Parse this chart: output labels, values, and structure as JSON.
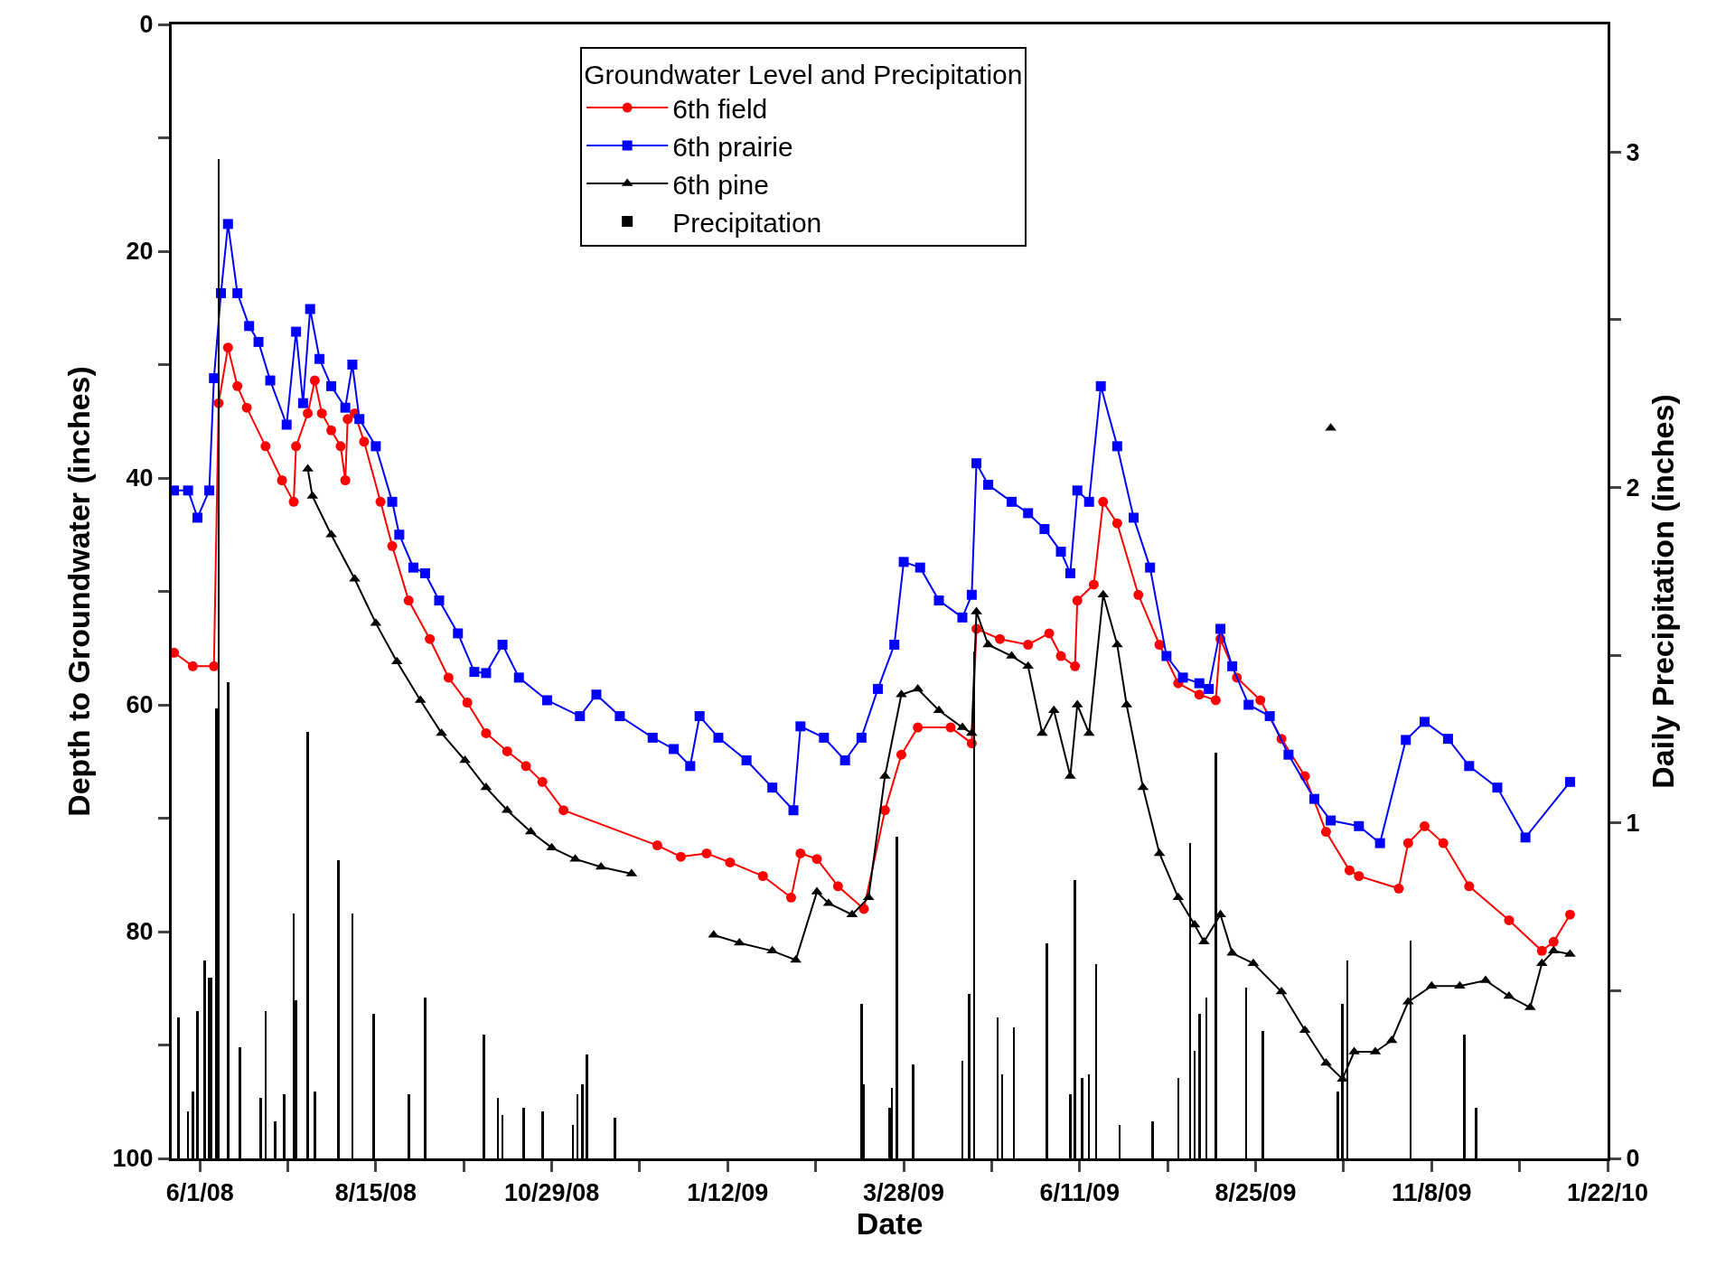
{
  "chart_data": {
    "type": "line",
    "xlabel": "Date",
    "ylabel": "Depth to Groundwater (inches)",
    "y2label": "Daily Precipitation (inches)",
    "legend_title": "Groundwater Level and Precipitation",
    "legend": "top",
    "xlim": [
      "2008-05-20",
      "2010-01-22"
    ],
    "xticks": [
      {
        "value": "2008-06-01",
        "label": "6/1/08"
      },
      {
        "value": "2008-07-08T12:00",
        "label": null
      },
      {
        "value": "2008-08-15",
        "label": "8/15/08"
      },
      {
        "value": "2008-09-21T12:00",
        "label": null
      },
      {
        "value": "2008-10-29",
        "label": "10/29/08"
      },
      {
        "value": "2008-12-05T12:00",
        "label": null
      },
      {
        "value": "2009-01-12",
        "label": "1/12/09"
      },
      {
        "value": "2009-02-18T12:00",
        "label": null
      },
      {
        "value": "2009-03-28",
        "label": "3/28/09"
      },
      {
        "value": "2009-05-04T12:00",
        "label": null
      },
      {
        "value": "2009-06-11",
        "label": "6/11/09"
      },
      {
        "value": "2009-07-18T12:00",
        "label": null
      },
      {
        "value": "2009-08-25",
        "label": "8/25/09"
      },
      {
        "value": "2009-10-01T12:00",
        "label": null
      },
      {
        "value": "2009-11-08",
        "label": "11/8/09"
      },
      {
        "value": "2009-12-15T12:00",
        "label": null
      },
      {
        "value": "2010-01-22",
        "label": "1/22/10"
      }
    ],
    "ylim": [
      100,
      0
    ],
    "yticks": [
      0,
      {
        "value": 10,
        "label": null
      },
      20,
      {
        "value": 30,
        "label": null
      },
      40,
      {
        "value": 50,
        "label": null
      },
      60,
      {
        "value": 70,
        "label": null
      },
      80,
      {
        "value": 90,
        "label": null
      },
      100
    ],
    "y2lim": [
      0,
      3.38
    ],
    "y2ticks": [
      0,
      {
        "value": 0.5,
        "label": null
      },
      1,
      {
        "value": 1.5,
        "label": null
      },
      2,
      {
        "value": 2.5,
        "label": null
      },
      3
    ],
    "series": [
      {
        "name": "6th field",
        "color": "#ff0000",
        "marker": "circle",
        "x": [
          "2008-05-21",
          "2008-05-29",
          "2008-06-07",
          "2008-06-09",
          "2008-06-13",
          "2008-06-17",
          "2008-06-21",
          "2008-06-29",
          "2008-07-06",
          "2008-07-11",
          "2008-07-12",
          "2008-07-17",
          "2008-07-20",
          "2008-07-23",
          "2008-07-27",
          "2008-07-31",
          "2008-08-02",
          "2008-08-03",
          "2008-08-06",
          "2008-08-10",
          "2008-08-17",
          "2008-08-22",
          "2008-08-29",
          "2008-09-07",
          "2008-09-15",
          "2008-09-23",
          "2008-10-01",
          "2008-10-10",
          "2008-10-18",
          "2008-10-25",
          "2008-11-03",
          "2008-12-13",
          "2008-12-23",
          "2009-01-03",
          "2009-01-13",
          "2009-01-27",
          "2009-02-08",
          "2009-02-12",
          "2009-02-19",
          "2009-02-28",
          "2009-03-11",
          "2009-03-20",
          "2009-03-27",
          "2009-04-03",
          "2009-04-17",
          "2009-04-26",
          "2009-04-28",
          "2009-05-08",
          "2009-05-20",
          "2009-05-29",
          "2009-06-03",
          "2009-06-09",
          "2009-06-10",
          "2009-06-17",
          "2009-06-21",
          "2009-06-27",
          "2009-07-06",
          "2009-07-15",
          "2009-07-23",
          "2009-08-01",
          "2009-08-08",
          "2009-08-10",
          "2009-08-17",
          "2009-08-27",
          "2009-09-05",
          "2009-09-15",
          "2009-09-24",
          "2009-10-04",
          "2009-10-08",
          "2009-10-25",
          "2009-10-29",
          "2009-11-05",
          "2009-11-13",
          "2009-11-24",
          "2009-12-11",
          "2009-12-25",
          "2009-12-30",
          "2010-01-06"
        ],
        "values": [
          55.4,
          56.6,
          56.6,
          33.4,
          28.5,
          31.9,
          33.8,
          37.2,
          40.2,
          42.1,
          37.2,
          34.3,
          31.4,
          34.3,
          35.8,
          37.2,
          40.2,
          34.8,
          34.3,
          36.8,
          42.1,
          46.0,
          50.8,
          54.2,
          57.6,
          59.8,
          62.5,
          64.1,
          65.4,
          66.8,
          69.3,
          72.4,
          73.4,
          73.1,
          73.9,
          75.1,
          77.0,
          73.1,
          73.6,
          76.0,
          78.0,
          69.3,
          64.4,
          62.0,
          62.0,
          63.4,
          53.3,
          54.2,
          54.7,
          53.7,
          55.7,
          56.6,
          50.8,
          49.4,
          42.1,
          44.0,
          50.3,
          54.7,
          58.1,
          59.1,
          59.6,
          54.2,
          57.6,
          59.6,
          63.0,
          66.3,
          71.2,
          74.6,
          75.1,
          76.2,
          72.2,
          70.7,
          72.2,
          76.0,
          79.0,
          81.7,
          80.9,
          78.5
        ]
      },
      {
        "name": "6th prairie",
        "color": "#0000ff",
        "marker": "square",
        "x": [
          "2008-05-21",
          "2008-05-27",
          "2008-05-31",
          "2008-06-05",
          "2008-06-07",
          "2008-06-10",
          "2008-06-13",
          "2008-06-17",
          "2008-06-22",
          "2008-06-26",
          "2008-07-01",
          "2008-07-08",
          "2008-07-12",
          "2008-07-15",
          "2008-07-18",
          "2008-07-22",
          "2008-07-27",
          "2008-08-02",
          "2008-08-05",
          "2008-08-08",
          "2008-08-15",
          "2008-08-22",
          "2008-08-25",
          "2008-08-31",
          "2008-09-05",
          "2008-09-11",
          "2008-09-19",
          "2008-09-26",
          "2008-10-01",
          "2008-10-08",
          "2008-10-15",
          "2008-10-27",
          "2008-11-10",
          "2008-11-17",
          "2008-11-27",
          "2008-12-11",
          "2008-12-20",
          "2008-12-27",
          "2008-12-31",
          "2009-01-08",
          "2009-01-20",
          "2009-01-31",
          "2009-02-09",
          "2009-02-12",
          "2009-02-22",
          "2009-03-03",
          "2009-03-10",
          "2009-03-17",
          "2009-03-24",
          "2009-03-28",
          "2009-04-04",
          "2009-04-12",
          "2009-04-22",
          "2009-04-26",
          "2009-04-28",
          "2009-05-03",
          "2009-05-13",
          "2009-05-20",
          "2009-05-27",
          "2009-06-03",
          "2009-06-07",
          "2009-06-10",
          "2009-06-15",
          "2009-06-20",
          "2009-06-27",
          "2009-07-04",
          "2009-07-11",
          "2009-07-18",
          "2009-07-25",
          "2009-08-01",
          "2009-08-05",
          "2009-08-10",
          "2009-08-15",
          "2009-08-22",
          "2009-08-31",
          "2009-09-08",
          "2009-09-19",
          "2009-09-26",
          "2009-10-08",
          "2009-10-17",
          "2009-10-28",
          "2009-11-05",
          "2009-11-15",
          "2009-11-24",
          "2009-12-06",
          "2009-12-18",
          "2010-01-06"
        ],
        "values": [
          41.1,
          41.1,
          43.5,
          41.1,
          31.2,
          23.7,
          17.6,
          23.7,
          26.6,
          28.0,
          31.4,
          35.3,
          27.1,
          33.4,
          25.1,
          29.5,
          31.9,
          33.8,
          30.0,
          34.8,
          37.2,
          42.1,
          45.0,
          47.9,
          48.4,
          50.8,
          53.7,
          57.1,
          57.2,
          54.7,
          57.6,
          59.6,
          61.0,
          59.1,
          61.0,
          62.9,
          63.9,
          65.4,
          61.0,
          62.9,
          64.9,
          67.3,
          69.3,
          61.9,
          62.9,
          64.9,
          62.9,
          58.6,
          54.7,
          47.4,
          47.9,
          50.8,
          52.3,
          50.3,
          38.7,
          40.6,
          42.1,
          43.1,
          44.5,
          46.5,
          48.4,
          41.1,
          42.1,
          31.9,
          37.2,
          43.5,
          47.9,
          55.7,
          57.6,
          58.1,
          58.6,
          53.3,
          56.6,
          60.0,
          61.0,
          64.4,
          68.3,
          70.2,
          70.7,
          72.2,
          63.1,
          61.5,
          63.0,
          65.4,
          67.3,
          71.7,
          66.8
        ]
      },
      {
        "name": "6th pine",
        "color": "#000000",
        "marker": "triangle",
        "x": [
          "2008-07-17",
          "2008-07-19",
          "2008-07-27",
          "2008-08-06",
          "2008-08-15",
          "2008-08-24",
          "2008-09-03",
          "2008-09-12",
          "2008-09-22",
          "2008-10-01",
          "2008-10-10",
          "2008-10-20",
          "2008-10-29",
          "2008-11-08",
          "2008-11-19",
          "2008-12-02",
          "2008-12-15",
          "2009-01-06",
          "2009-01-17",
          "2009-01-31",
          "2009-02-10",
          "2009-02-19",
          "2009-02-24",
          "2009-03-06",
          "2009-03-13",
          "2009-03-20",
          "2009-03-27",
          "2009-04-03",
          "2009-04-12",
          "2009-04-22",
          "2009-04-26",
          "2009-04-28",
          "2009-05-03",
          "2009-05-13",
          "2009-05-20",
          "2009-05-26",
          "2009-05-31",
          "2009-06-07",
          "2009-06-10",
          "2009-06-15",
          "2009-06-21",
          "2009-06-27",
          "2009-07-01",
          "2009-07-08",
          "2009-07-15",
          "2009-07-23",
          "2009-07-30",
          "2009-08-03",
          "2009-08-10",
          "2009-08-15",
          "2009-08-24",
          "2009-09-05",
          "2009-09-15",
          "2009-09-24",
          "2009-10-01",
          "2009-10-06",
          "2009-10-15",
          "2009-10-22",
          "2009-10-29",
          "2009-11-08",
          "2009-11-20",
          "2009-12-01",
          "2009-12-11",
          "2009-12-20",
          "2009-12-25",
          "2009-12-30",
          "2010-01-06"
        ],
        "values": [
          39.2,
          41.6,
          45.0,
          48.9,
          52.8,
          56.2,
          59.6,
          62.5,
          64.9,
          67.3,
          69.3,
          71.2,
          72.6,
          73.6,
          74.3,
          74.9,
          null,
          80.3,
          81.0,
          81.7,
          82.5,
          76.5,
          77.5,
          78.5,
          77.0,
          66.3,
          59.1,
          58.6,
          60.5,
          62.0,
          62.5,
          51.8,
          54.7,
          55.7,
          56.6,
          62.5,
          60.5,
          66.3,
          60.0,
          62.5,
          50.3,
          54.7,
          60.0,
          67.3,
          73.1,
          77.0,
          79.4,
          80.9,
          78.5,
          81.9,
          82.8,
          85.3,
          88.7,
          91.6,
          93.0,
          90.6,
          90.6,
          89.6,
          86.2,
          84.8,
          84.8,
          84.3,
          85.7,
          86.7,
          82.8,
          81.7,
          82.0
        ]
      },
      {
        "type": "scatter",
        "color": "#000000",
        "marker": "triangle",
        "x": [
          "2009-09-26"
        ],
        "values": [
          35.6
        ]
      },
      {
        "name": "Precipitation",
        "type": "bar",
        "axis": "y2",
        "color": "#000000",
        "x": [
          "2008-05-23",
          "2008-05-27",
          "2008-05-29",
          "2008-05-31",
          "2008-06-03",
          "2008-06-05",
          "2008-06-06",
          "2008-06-08",
          "2008-06-09",
          "2008-06-13",
          "2008-06-18",
          "2008-06-27",
          "2008-06-29",
          "2008-07-03",
          "2008-07-07",
          "2008-07-11",
          "2008-07-12",
          "2008-07-17",
          "2008-07-20",
          "2008-07-30",
          "2008-08-05",
          "2008-08-14",
          "2008-08-29",
          "2008-09-05",
          "2008-09-30",
          "2008-10-06",
          "2008-10-08",
          "2008-10-17",
          "2008-10-25",
          "2008-11-07",
          "2008-11-09",
          "2008-11-11",
          "2008-11-13",
          "2008-11-25",
          "2009-03-10",
          "2009-03-11",
          "2009-03-22",
          "2009-03-23",
          "2009-03-25",
          "2009-04-01",
          "2009-04-22",
          "2009-04-25",
          "2009-04-27",
          "2009-05-07",
          "2009-05-09",
          "2009-05-14",
          "2009-05-28",
          "2009-06-07",
          "2009-06-09",
          "2009-06-12",
          "2009-06-15",
          "2009-06-18",
          "2009-06-28",
          "2009-07-12",
          "2009-07-23",
          "2009-07-28",
          "2009-07-30",
          "2009-08-01",
          "2009-08-04",
          "2009-08-08",
          "2009-08-21",
          "2009-08-28",
          "2009-09-29",
          "2009-10-01",
          "2009-10-03",
          "2009-10-30",
          "2009-11-22",
          "2009-11-27"
        ],
        "values": [
          0.42,
          0.14,
          0.2,
          0.44,
          0.59,
          0.54,
          0.54,
          1.34,
          2.98,
          1.42,
          0.33,
          0.18,
          0.44,
          0.11,
          0.19,
          0.73,
          0.47,
          1.27,
          0.2,
          0.89,
          0.73,
          0.43,
          0.19,
          0.48,
          0.37,
          0.18,
          0.13,
          0.15,
          0.14,
          0.1,
          0.19,
          0.22,
          0.31,
          0.12,
          0.46,
          0.22,
          0.15,
          0.21,
          0.96,
          0.28,
          0.29,
          0.49,
          1.51,
          0.42,
          0.25,
          0.39,
          0.64,
          0.19,
          0.83,
          0.24,
          0.25,
          0.58,
          0.1,
          0.11,
          0.24,
          0.94,
          0.32,
          0.43,
          0.48,
          1.21,
          0.51,
          0.38,
          0.2,
          0.46,
          0.59,
          0.65,
          0.37,
          0.15
        ]
      }
    ]
  }
}
